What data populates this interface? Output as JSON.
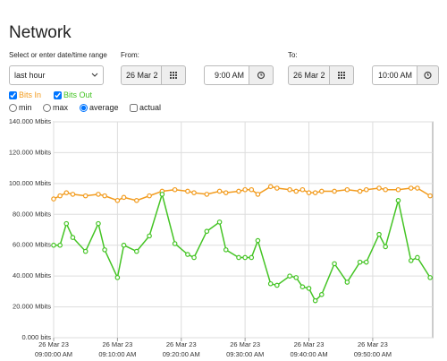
{
  "header": {
    "title": "Network"
  },
  "controls": {
    "range_label": "Select or enter date/time range",
    "range_select": "last hour",
    "from_label": "From:",
    "from_date": "26 Mar 2",
    "from_time": "9:00 AM",
    "to_label": "To:",
    "to_date": "26 Mar 2",
    "to_time": "10:00 AM",
    "modes": [
      "min",
      "max",
      "average"
    ],
    "actual": "actual"
  },
  "chart_data": {
    "type": "line",
    "x": [
      "2023-03-26T09:00",
      "2023-03-26T09:01",
      "2023-03-26T09:02",
      "2023-03-26T09:03",
      "2023-03-26T09:05",
      "2023-03-26T09:07",
      "2023-03-26T09:08",
      "2023-03-26T09:10",
      "2023-03-26T09:11",
      "2023-03-26T09:13",
      "2023-03-26T09:15",
      "2023-03-26T09:17",
      "2023-03-26T09:19",
      "2023-03-26T09:21",
      "2023-03-26T09:22",
      "2023-03-26T09:24",
      "2023-03-26T09:26",
      "2023-03-26T09:27",
      "2023-03-26T09:29",
      "2023-03-26T09:30",
      "2023-03-26T09:31",
      "2023-03-26T09:32",
      "2023-03-26T09:34",
      "2023-03-26T09:35",
      "2023-03-26T09:37",
      "2023-03-26T09:38",
      "2023-03-26T09:39",
      "2023-03-26T09:40",
      "2023-03-26T09:41",
      "2023-03-26T09:42",
      "2023-03-26T09:44",
      "2023-03-26T09:46",
      "2023-03-26T09:48",
      "2023-03-26T09:49",
      "2023-03-26T09:51",
      "2023-03-26T09:52",
      "2023-03-26T09:54",
      "2023-03-26T09:56",
      "2023-03-26T09:57",
      "2023-03-26T09:59"
    ],
    "series": [
      {
        "name": "Bits In",
        "color": "#f29b1d",
        "values": [
          90,
          92,
          94,
          93,
          92,
          93,
          92,
          89,
          91,
          89,
          92,
          95,
          96,
          95,
          94,
          93,
          95,
          94,
          95,
          96,
          96,
          93,
          98,
          97,
          96,
          95,
          96,
          94,
          94,
          95,
          95,
          96,
          95,
          96,
          97,
          96,
          96,
          97,
          97,
          92
        ]
      },
      {
        "name": "Bits Out",
        "color": "#44c424",
        "values": [
          60,
          60,
          74,
          65,
          56,
          74,
          57,
          39,
          60,
          56,
          66,
          93,
          61,
          54,
          52,
          69,
          75,
          57,
          52,
          52,
          52,
          63,
          35,
          34,
          40,
          39,
          33,
          32,
          24,
          28,
          48,
          36,
          49,
          49,
          67,
          59,
          89,
          50,
          52,
          39
        ]
      }
    ],
    "xlim": [
      "2023-03-26T09:00",
      "2023-03-26T09:59:24"
    ],
    "xticks": [
      {
        "value": "2023-03-26T09:00",
        "label": [
          "26 Mar 23",
          "09:00:00 AM"
        ]
      },
      {
        "value": "2023-03-26T09:10",
        "label": [
          "26 Mar 23",
          "09:10:00 AM"
        ]
      },
      {
        "value": "2023-03-26T09:20",
        "label": [
          "26 Mar 23",
          "09:20:00 AM"
        ]
      },
      {
        "value": "2023-03-26T09:30",
        "label": [
          "26 Mar 23",
          "09:30:00 AM"
        ]
      },
      {
        "value": "2023-03-26T09:40",
        "label": [
          "26 Mar 23",
          "09:40:00 AM"
        ]
      },
      {
        "value": "2023-03-26T09:50",
        "label": [
          "26 Mar 23",
          "09:50:00 AM"
        ]
      }
    ],
    "ylim": [
      0,
      140
    ],
    "yticks": [
      {
        "value": 0,
        "label": "0.000 bits"
      },
      {
        "value": 20,
        "label": "20.000 Mbits"
      },
      {
        "value": 40,
        "label": "40.000 Mbits"
      },
      {
        "value": 60,
        "label": "60.000 Mbits"
      },
      {
        "value": 80,
        "label": "80.000 Mbits"
      },
      {
        "value": 100,
        "label": "100.000 Mbits"
      },
      {
        "value": 120,
        "label": "120.000 Mbits"
      },
      {
        "value": 140,
        "label": "140.000 Mbits"
      }
    ],
    "grid": true
  }
}
